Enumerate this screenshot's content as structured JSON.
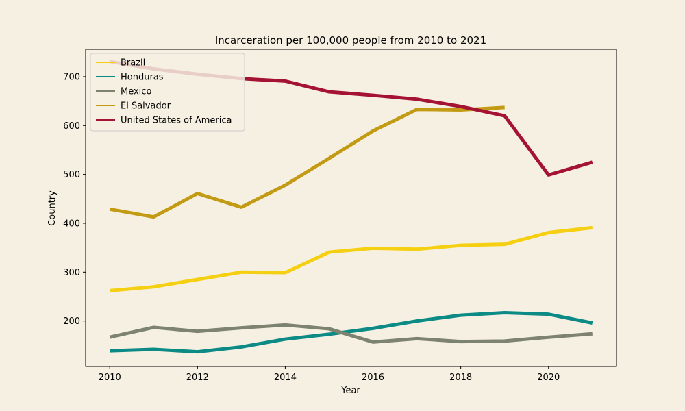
{
  "chart_data": {
    "type": "line",
    "title": "Incarceration per 100,000 people from 2010 to 2021",
    "xlabel": "Year",
    "ylabel": "Country",
    "xlim": [
      2009.45,
      2021.55
    ],
    "ylim": [
      107,
      756
    ],
    "x_ticks": [
      2010,
      2012,
      2014,
      2016,
      2018,
      2020
    ],
    "y_ticks": [
      200,
      300,
      400,
      500,
      600,
      700
    ],
    "legend_position": "top-left",
    "grid": false,
    "colors": {
      "background": "#f5f0e1",
      "plot_background": "#f5f0e1"
    },
    "series": [
      {
        "name": "Brazil",
        "color": "#f5cf12",
        "x": [
          2010,
          2011,
          2012,
          2013,
          2014,
          2015,
          2016,
          2017,
          2018,
          2019,
          2020,
          2021
        ],
        "y": [
          262,
          270,
          285,
          300,
          299,
          341,
          349,
          347,
          355,
          357,
          381,
          391
        ]
      },
      {
        "name": "Honduras",
        "color": "#0c8a85",
        "x": [
          2010,
          2011,
          2012,
          2013,
          2014,
          2015,
          2016,
          2017,
          2018,
          2019,
          2020,
          2021
        ],
        "y": [
          139,
          142,
          137,
          147,
          163,
          173,
          185,
          200,
          212,
          217,
          214,
          196
        ]
      },
      {
        "name": "Mexico",
        "color": "#7e8370",
        "x": [
          2010,
          2011,
          2012,
          2013,
          2014,
          2015,
          2016,
          2017,
          2018,
          2019,
          2020,
          2021
        ],
        "y": [
          167,
          187,
          179,
          186,
          192,
          184,
          157,
          164,
          158,
          159,
          167,
          174
        ]
      },
      {
        "name": "El Salvador",
        "color": "#c39a13",
        "x": [
          2010,
          2011,
          2012,
          2013,
          2014,
          2015,
          2016,
          2017,
          2018,
          2019
        ],
        "y": [
          429,
          413,
          461,
          433,
          478,
          533,
          589,
          633,
          632,
          637
        ]
      },
      {
        "name": "United States of America",
        "color": "#a51332",
        "x": [
          2010,
          2011,
          2012,
          2013,
          2014,
          2015,
          2016,
          2017,
          2018,
          2019,
          2020,
          2021
        ],
        "y": [
          731,
          716,
          705,
          696,
          691,
          669,
          662,
          654,
          639,
          620,
          499,
          525
        ]
      }
    ]
  }
}
